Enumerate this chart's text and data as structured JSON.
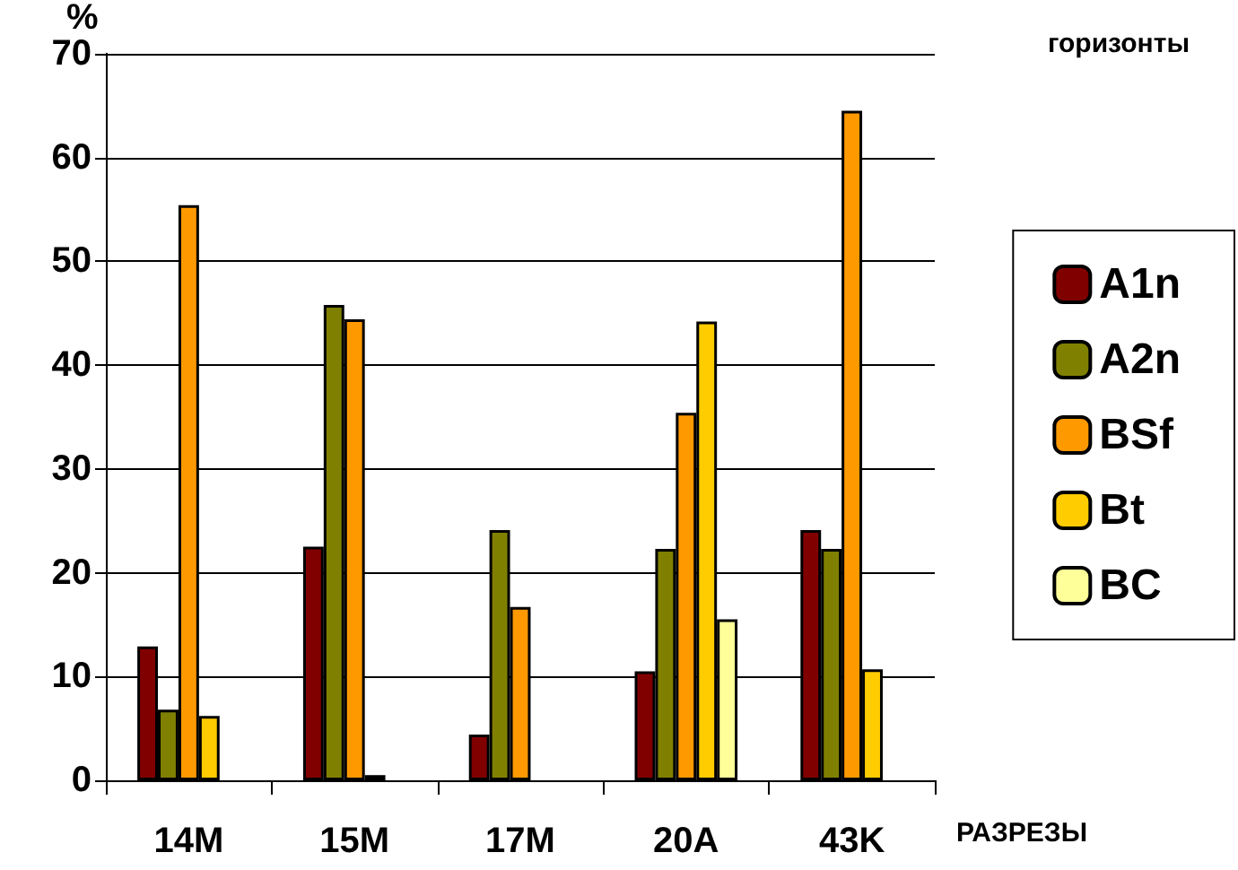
{
  "chart_data": {
    "type": "bar",
    "categories": [
      "14M",
      "15M",
      "17M",
      "20A",
      "43K"
    ],
    "series": [
      {
        "name": "A1n",
        "color": "#800000",
        "values": [
          12.9,
          22.5,
          4.4,
          10.5,
          24.1
        ]
      },
      {
        "name": "A2n",
        "color": "#808000",
        "values": [
          6.8,
          45.8,
          24.1,
          22.3,
          22.3
        ]
      },
      {
        "name": "BSf",
        "color": "#ff9900",
        "values": [
          55.4,
          44.4,
          16.7,
          35.4,
          64.5
        ]
      },
      {
        "name": "Bt",
        "color": "#ffcc00",
        "values": [
          6.2,
          0.5,
          null,
          44.2,
          10.7
        ]
      },
      {
        "name": "BC",
        "color": "#ffff99",
        "values": [
          null,
          null,
          null,
          15.5,
          null
        ]
      }
    ],
    "ylabel": "%",
    "xlabel": "РАЗРЕЗЫ",
    "legend_title": "горизонты",
    "ylim": [
      0,
      70
    ],
    "yticks": [
      0,
      10,
      20,
      30,
      40,
      50,
      60,
      70
    ],
    "grid": "y",
    "legend": "right"
  }
}
